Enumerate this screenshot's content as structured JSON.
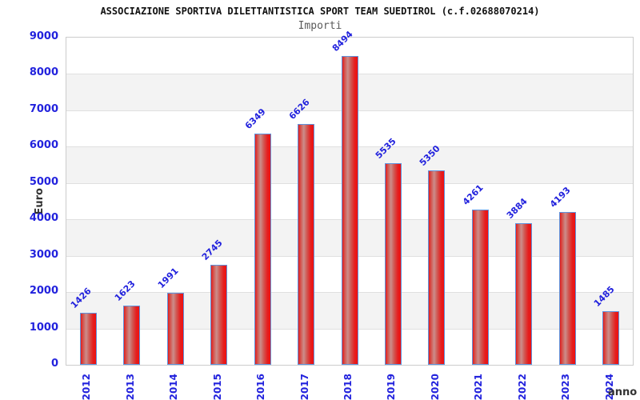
{
  "chart_data": {
    "type": "bar",
    "title": "ASSOCIAZIONE SPORTIVA DILETTANTISTICA SPORT TEAM SUEDTIROL (c.f.02688070214)",
    "subtitle": "Importi",
    "xlabel": "anno",
    "ylabel": "Euro",
    "categories": [
      "2012",
      "2013",
      "2014",
      "2015",
      "2016",
      "2017",
      "2018",
      "2019",
      "2020",
      "2021",
      "2022",
      "2023",
      "2024"
    ],
    "values": [
      1426,
      1623,
      1991,
      2745,
      6349,
      6626,
      8494,
      5535,
      5350,
      4261,
      3884,
      4193,
      1485
    ],
    "ylim": [
      0,
      9000
    ],
    "ytick_step": 1000,
    "ytick_labels": [
      "0",
      "1000",
      "2000",
      "3000",
      "4000",
      "5000",
      "6000",
      "7000",
      "8000",
      "9000"
    ],
    "grid": true,
    "legend_position": "none",
    "layout_hints": {
      "bar_value_labels_rotation_deg": -45,
      "x_tick_rotation_deg": -90,
      "alternating_bands": true
    }
  },
  "style": {
    "axis_text_color": "#2222dd",
    "title_color": "#111111",
    "subtitle_color": "#5a5a5a",
    "axis_title_color": "#333333",
    "bar_border_color": "#5f93dd",
    "bar_gradient_left": "#e41c1c",
    "bar_gradient_highlight": "#cc8e8b",
    "bar_gradient_right": "#ee0f0f",
    "band_color": "#f3f3f3",
    "gridline_color": "#e0e0e0",
    "plot_border_color": "#cccccc",
    "background": "#ffffff"
  }
}
